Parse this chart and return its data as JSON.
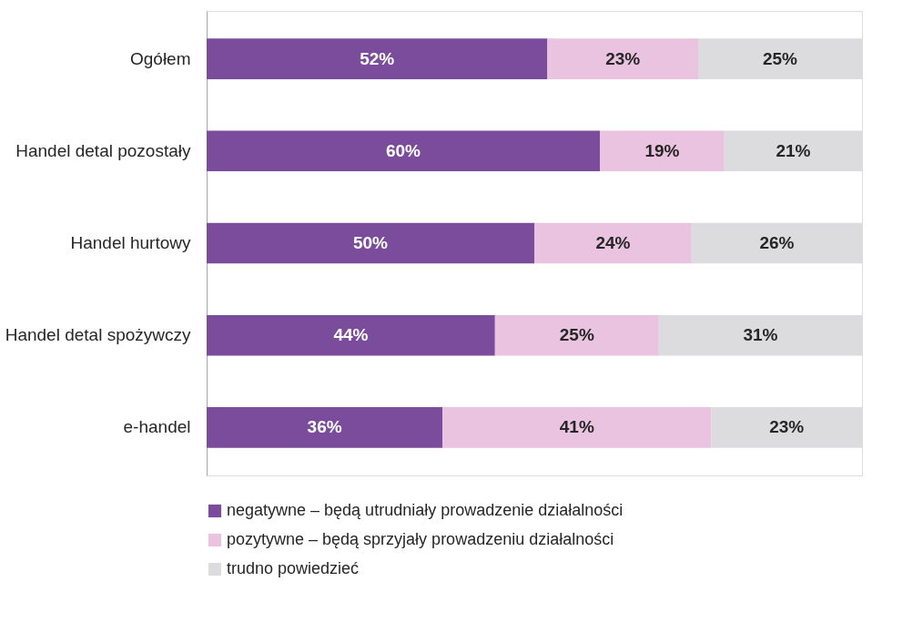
{
  "chart_data": {
    "type": "bar",
    "orientation": "horizontal",
    "stacked": true,
    "categories": [
      "Ogółem",
      "Handel detal pozostały",
      "Handel hurtowy",
      "Handel detal spożywczy",
      "e-handel"
    ],
    "series": [
      {
        "name": "negatywne – będą utrudniały prowadzenie działalności",
        "color": "#7b4c9c",
        "values": [
          52,
          60,
          50,
          44,
          36
        ],
        "value_labels": [
          "52%",
          "60%",
          "50%",
          "44%",
          "36%"
        ]
      },
      {
        "name": "pozytywne – będą sprzyjały prowadzeniu działalności",
        "color": "#e9c3df",
        "values": [
          23,
          19,
          24,
          25,
          41
        ],
        "value_labels": [
          "23%",
          "19%",
          "24%",
          "25%",
          "41%"
        ]
      },
      {
        "name": "trudno powiedzieć",
        "color": "#dcdcde",
        "values": [
          25,
          21,
          26,
          31,
          23
        ],
        "value_labels": [
          "25%",
          "21%",
          "26%",
          "31%",
          "23%"
        ]
      }
    ],
    "xlim": [
      0,
      100
    ],
    "tick_labels": "y",
    "grid": false,
    "legend": "bottom"
  }
}
